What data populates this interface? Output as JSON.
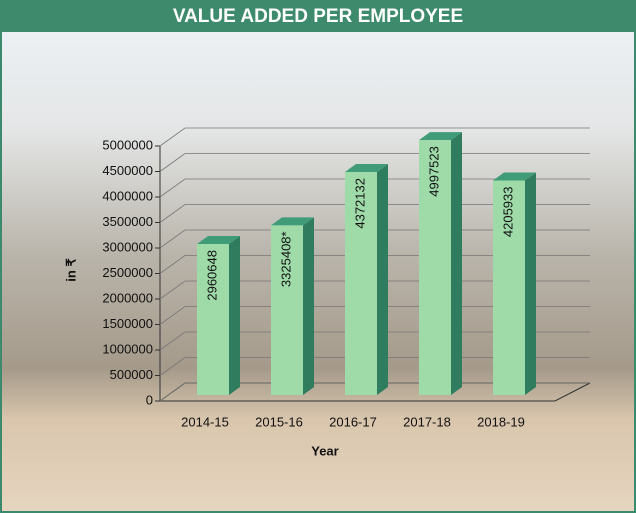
{
  "chart_data": {
    "type": "bar3d",
    "title": "VALUE ADDED PER EMPLOYEE",
    "categories": [
      "2014-15",
      "2015-16",
      "2016-17",
      "2017-18",
      "2018-19"
    ],
    "values": [
      2960648,
      3325408,
      4372132,
      4997523,
      4205933
    ],
    "value_labels": [
      "2960648",
      "3325408*",
      "4372132",
      "4997523",
      "4205933"
    ],
    "color": "#9fdaa9",
    "ylim": [
      0,
      5000000
    ],
    "yticks": [
      0,
      500000,
      1000000,
      1500000,
      2000000,
      2500000,
      3000000,
      3500000,
      4000000,
      4500000,
      5000000
    ],
    "y_label": "in ₹",
    "x_label": "Year",
    "grid": true
  }
}
